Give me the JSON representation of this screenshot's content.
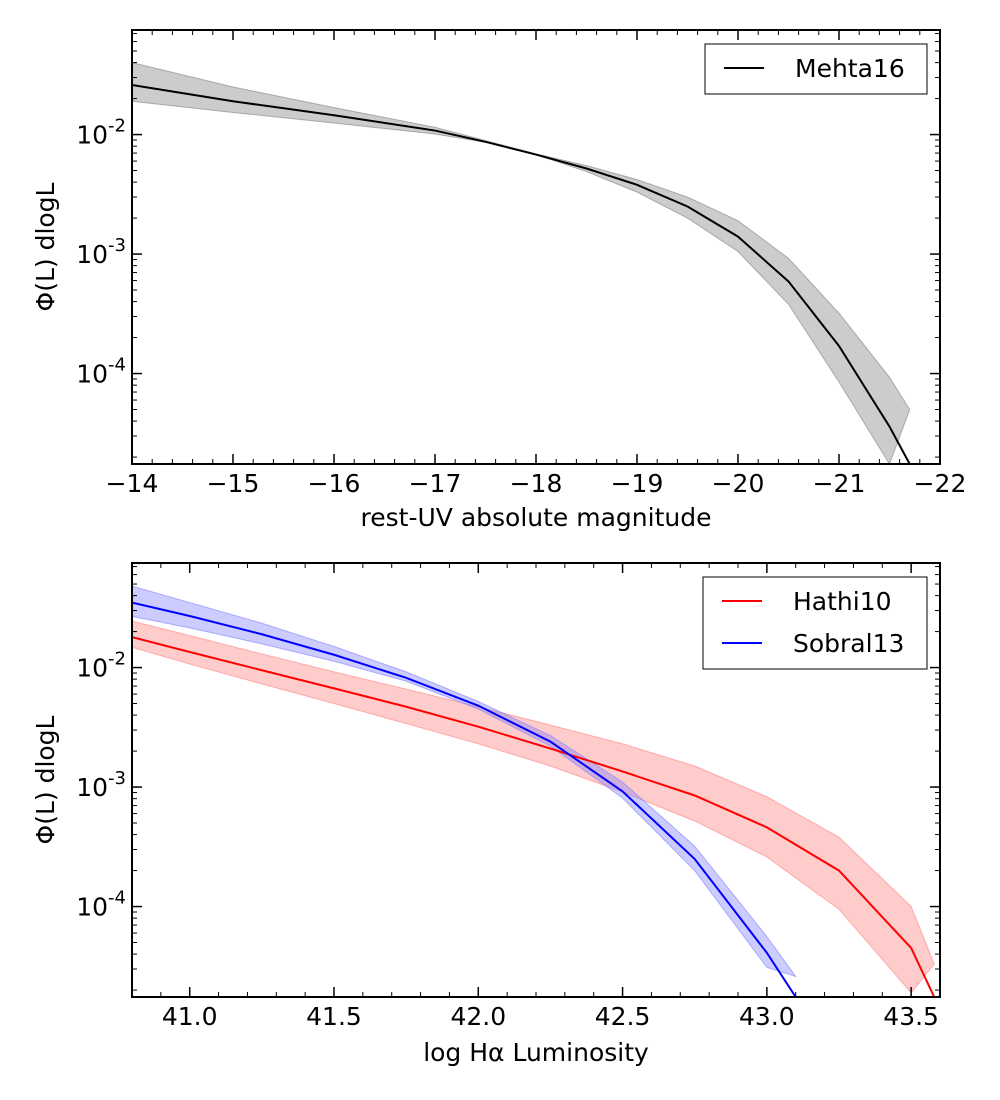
{
  "chart_data": [
    {
      "type": "line",
      "title": "",
      "xlabel": "rest-UV absolute magnitude",
      "ylabel": "Φ(L) dlogL",
      "xlim": [
        -14,
        -22
      ],
      "ylim": [
        1.75e-05,
        0.075
      ],
      "yscale": "log",
      "grid": false,
      "legend_position": "top-right",
      "xticks": [
        -14,
        -15,
        -16,
        -17,
        -18,
        -19,
        -20,
        -21,
        -22
      ],
      "xtick_labels": [
        "−14",
        "−15",
        "−16",
        "−17",
        "−18",
        "−19",
        "−20",
        "−21",
        "−22"
      ],
      "yticks": [
        0.0001,
        0.001,
        0.01
      ],
      "ytick_labels": [
        {
          "base": "10",
          "exp": "-4"
        },
        {
          "base": "10",
          "exp": "-3"
        },
        {
          "base": "10",
          "exp": "-2"
        }
      ],
      "series": [
        {
          "name": "Mehta16",
          "color": "#000000",
          "band_color": "#808080",
          "x": [
            -14,
            -15,
            -16,
            -17,
            -17.5,
            -18,
            -18.5,
            -19,
            -19.5,
            -20,
            -20.5,
            -21,
            -21.5,
            -21.7
          ],
          "y": [
            0.026,
            0.019,
            0.0145,
            0.0108,
            0.0087,
            0.0068,
            0.0052,
            0.0038,
            0.0025,
            0.0014,
            0.00059,
            0.00017,
            3.6e-05,
            1.75e-05
          ],
          "y_lower": [
            0.019,
            0.0153,
            0.0125,
            0.0101,
            0.0086,
            0.0068,
            0.0049,
            0.0033,
            0.002,
            0.00105,
            0.00038,
            8.5e-05,
            1.75e-05,
            null
          ],
          "y_upper": [
            0.04,
            0.025,
            0.0168,
            0.0115,
            0.0089,
            0.0069,
            0.0055,
            0.0042,
            0.003,
            0.0019,
            0.00092,
            0.00032,
            9.3e-05,
            5e-05
          ]
        }
      ]
    },
    {
      "type": "line",
      "title": "",
      "xlabel": "log Hα Luminosity",
      "ylabel": "Φ(L) dlogL",
      "xlim": [
        40.8,
        43.6
      ],
      "ylim": [
        1.75e-05,
        0.075
      ],
      "yscale": "log",
      "grid": false,
      "legend_position": "top-right",
      "xticks": [
        41.0,
        41.5,
        42.0,
        42.5,
        43.0,
        43.5
      ],
      "xtick_labels": [
        "41.0",
        "41.5",
        "42.0",
        "42.5",
        "43.0",
        "43.5"
      ],
      "yticks": [
        0.0001,
        0.001,
        0.01
      ],
      "ytick_labels": [
        {
          "base": "10",
          "exp": "-4"
        },
        {
          "base": "10",
          "exp": "-3"
        },
        {
          "base": "10",
          "exp": "-2"
        }
      ],
      "series": [
        {
          "name": "Hathi10",
          "color": "#ff0000",
          "band_color": "#ff8080",
          "x": [
            40.8,
            41.0,
            41.25,
            41.5,
            41.75,
            42.0,
            42.25,
            42.5,
            42.75,
            43.0,
            43.25,
            43.5,
            43.58
          ],
          "y": [
            0.018,
            0.0135,
            0.0095,
            0.0067,
            0.0047,
            0.0032,
            0.0021,
            0.00135,
            0.00085,
            0.00046,
            0.0002,
            4.5e-05,
            1.75e-05
          ],
          "y_lower": [
            0.0148,
            0.0107,
            0.0073,
            0.005,
            0.0034,
            0.0023,
            0.0015,
            0.00091,
            0.00052,
            0.00026,
            9.5e-05,
            1.9e-05,
            null
          ],
          "y_upper": [
            0.0245,
            0.0185,
            0.013,
            0.0092,
            0.0066,
            0.0047,
            0.0033,
            0.0023,
            0.0015,
            0.00083,
            0.00038,
            0.0001,
            3.3e-05
          ]
        },
        {
          "name": "Sobral13",
          "color": "#0000ff",
          "band_color": "#8080ff",
          "x": [
            40.8,
            41.0,
            41.25,
            41.5,
            41.75,
            42.0,
            42.25,
            42.5,
            42.75,
            43.0,
            43.1
          ],
          "y": [
            0.035,
            0.027,
            0.019,
            0.0128,
            0.0082,
            0.0048,
            0.0024,
            0.00092,
            0.00025,
            4.1e-05,
            1.75e-05
          ],
          "y_lower": [
            0.0268,
            0.0215,
            0.0158,
            0.0113,
            0.0077,
            0.0045,
            0.0022,
            0.00081,
            0.0002,
            3.1e-05,
            null
          ],
          "y_upper": [
            0.048,
            0.035,
            0.0235,
            0.015,
            0.0092,
            0.0052,
            0.0027,
            0.0011,
            0.00032,
            5.6e-05,
            2.6e-05
          ]
        }
      ]
    }
  ]
}
